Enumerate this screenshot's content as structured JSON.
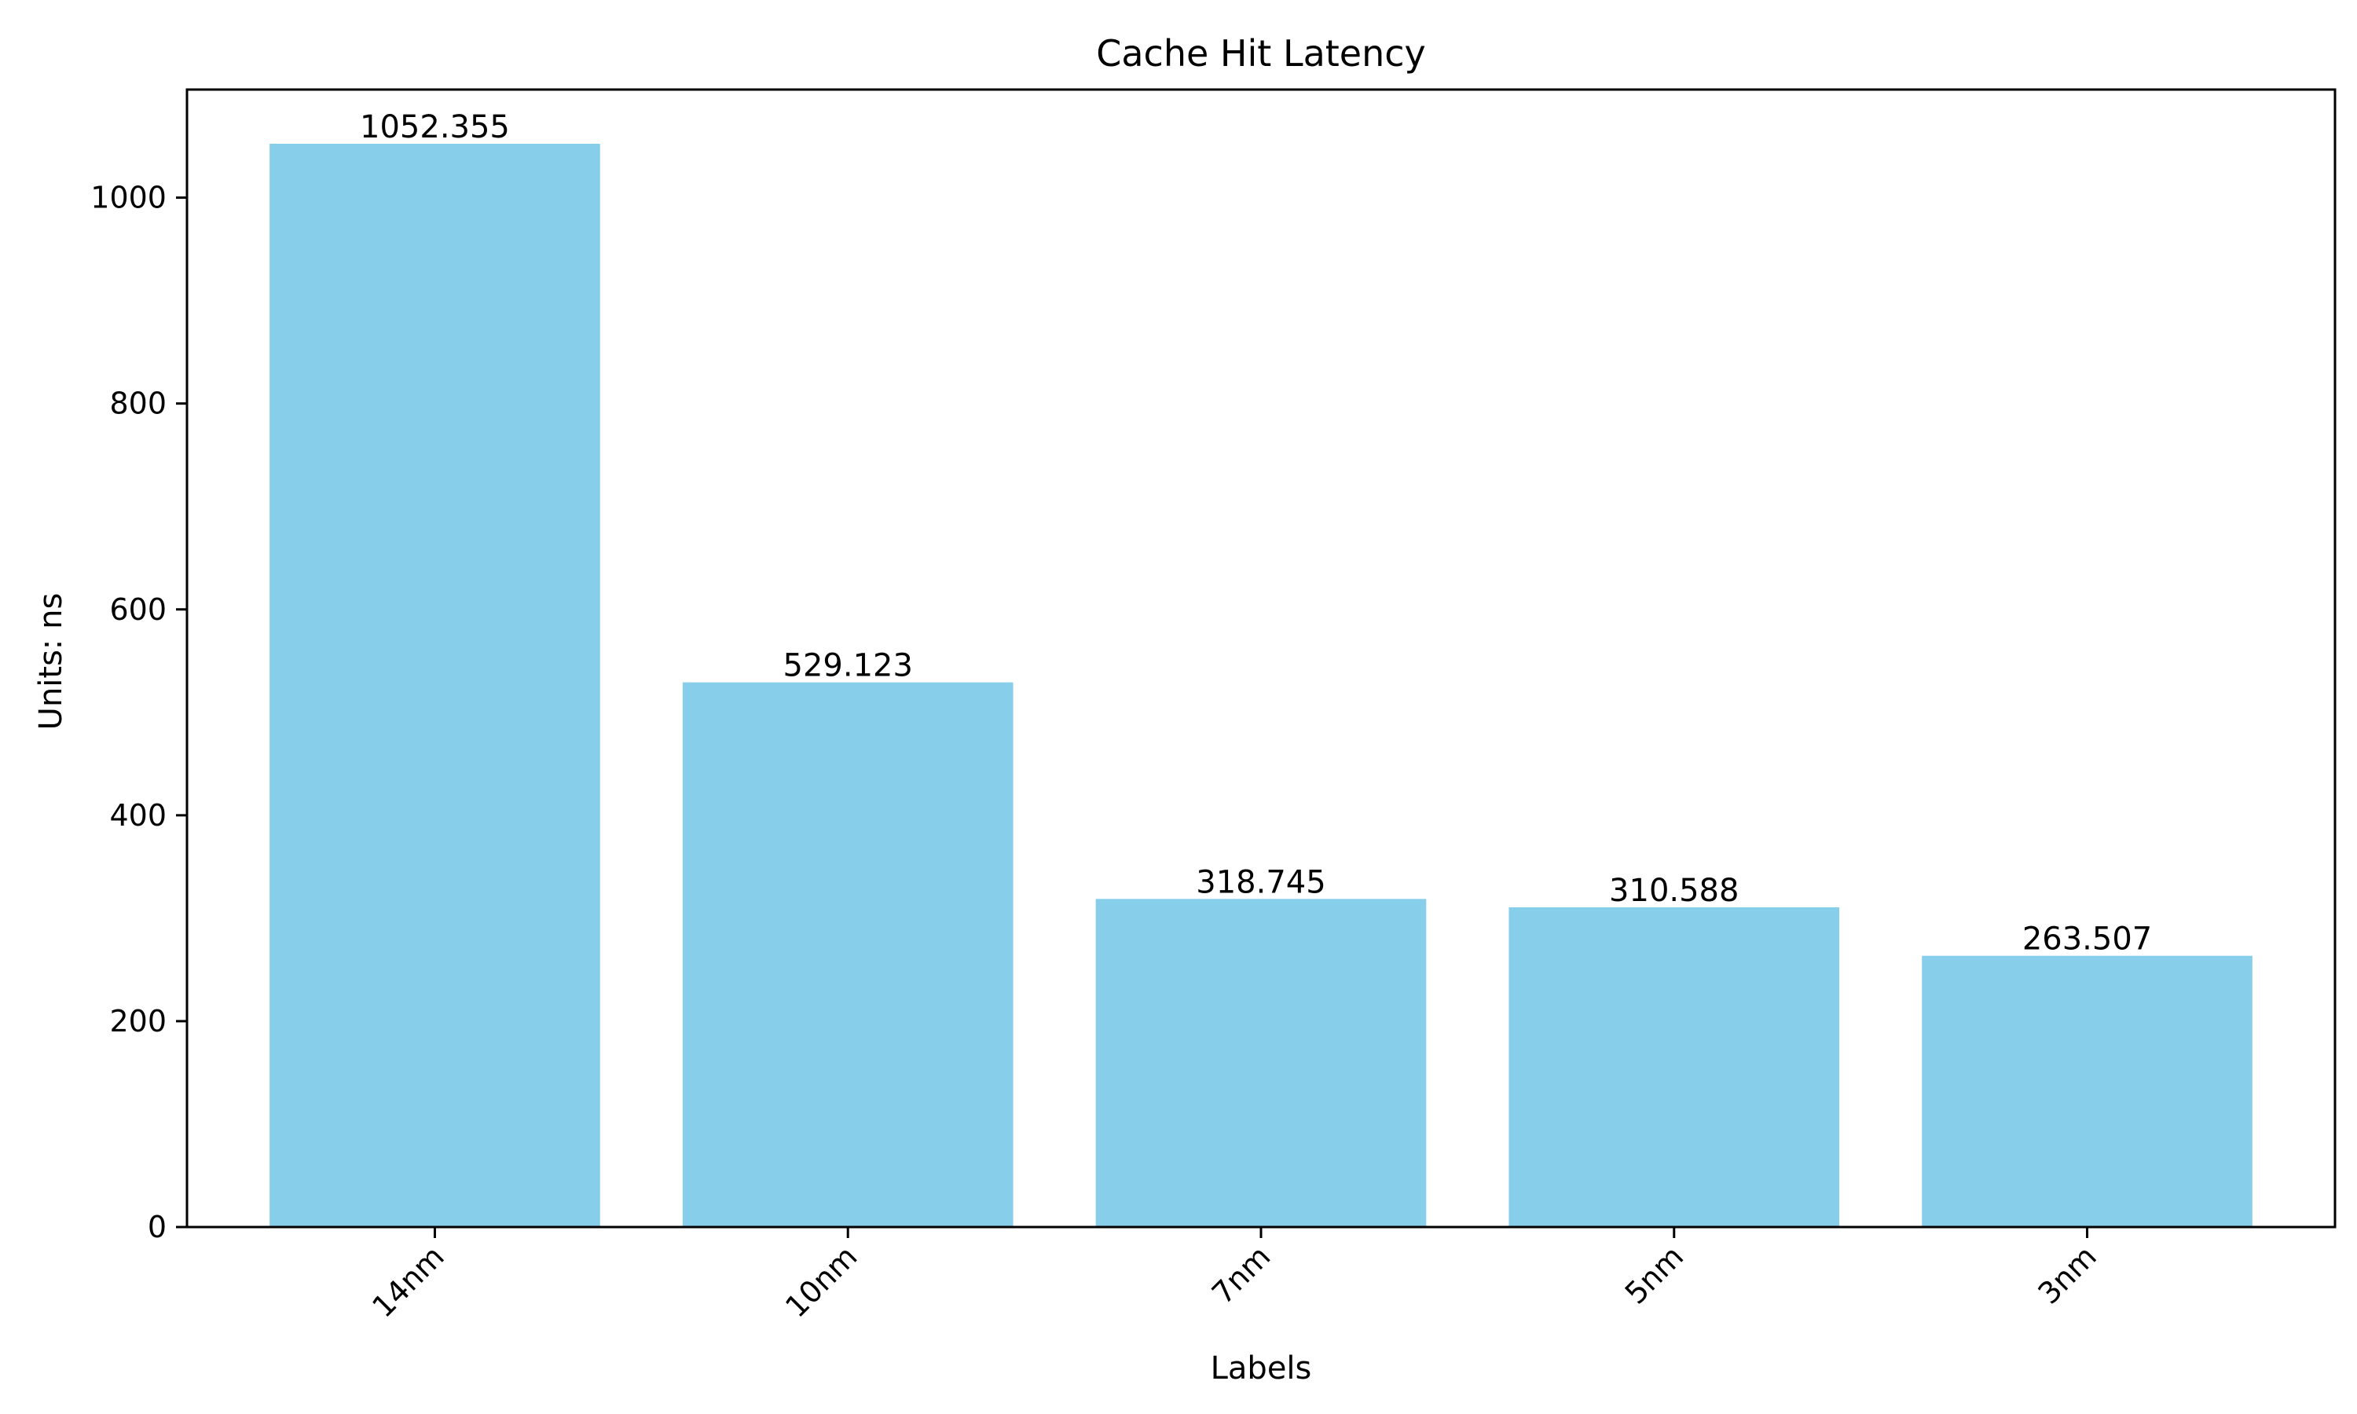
{
  "chart_data": {
    "type": "bar",
    "title": "Cache Hit Latency",
    "xlabel": "Labels",
    "ylabel": "Units: ns",
    "categories": [
      "14nm",
      "10nm",
      "7nm",
      "5nm",
      "3nm"
    ],
    "values": [
      1052.355,
      529.123,
      318.745,
      310.588,
      263.507
    ],
    "value_labels": [
      "1052.355",
      "529.123",
      "318.745",
      "310.588",
      "263.507"
    ],
    "ylim": [
      0,
      1105
    ],
    "yticks": [
      0,
      200,
      400,
      600,
      800,
      1000
    ],
    "ytick_labels": [
      "0",
      "200",
      "400",
      "600",
      "800",
      "1000"
    ],
    "bar_color": "#87CEEB",
    "grid": false,
    "legend": "none"
  }
}
